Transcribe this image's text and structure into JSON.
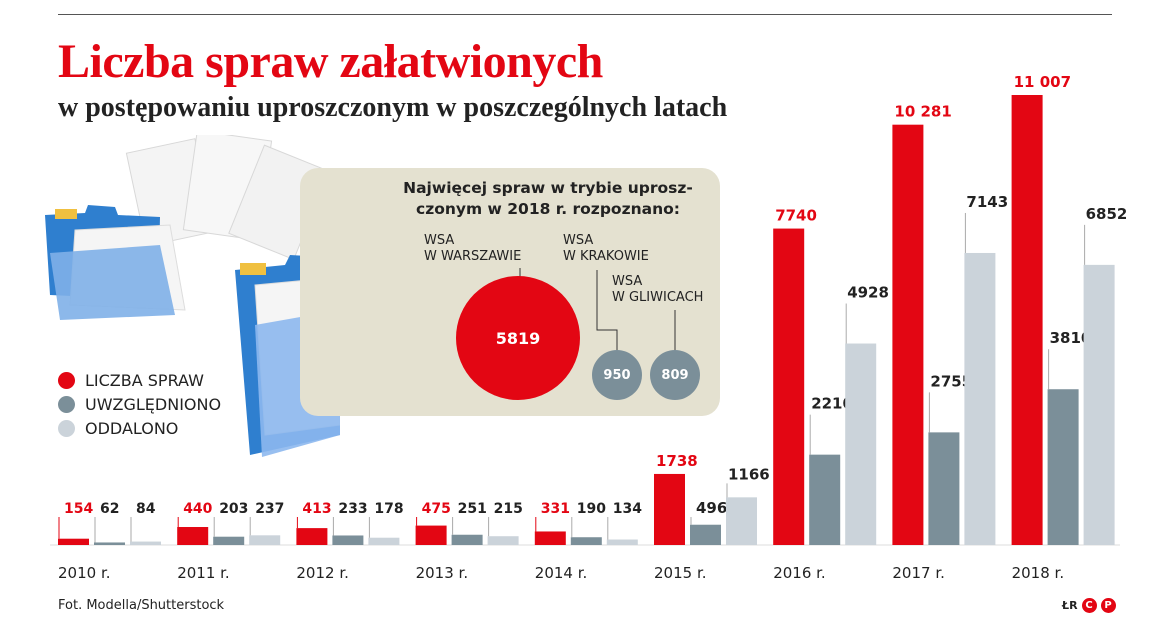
{
  "title": "Liczba spraw załatwionych",
  "subtitle": "w postępowaniu uproszczonym w poszczególnych latach",
  "callout": {
    "text": "Najwięcej spraw w trybie uprosz-czonym w 2018 r. rozpoznano:",
    "items": [
      {
        "label_line1": "WSA",
        "label_line2": "W WARSZAWIE",
        "value": "5819"
      },
      {
        "label_line1": "WSA",
        "label_line2": "W KRAKOWIE",
        "value": "950"
      },
      {
        "label_line1": "WSA",
        "label_line2": "W GLIWICACH",
        "value": "809"
      }
    ]
  },
  "legend": [
    {
      "label": "LICZBA SPRAW",
      "color": "#e30613"
    },
    {
      "label": "UWZGLĘDNIONO",
      "color": "#7b8f99"
    },
    {
      "label": "ODDALONO",
      "color": "#cbd3da"
    }
  ],
  "footer": {
    "source": "Fot. Modella/Shutterstock",
    "logo_text": "ŁR"
  },
  "colors": {
    "red": "#e30613",
    "dark": "#7b8f99",
    "light": "#cbd3da",
    "callout_bg": "#e4e1d0"
  },
  "chart_data": {
    "type": "bar",
    "categories": [
      "2010 r.",
      "2011 r.",
      "2012 r.",
      "2013 r.",
      "2014 r.",
      "2015 r.",
      "2016 r.",
      "2017 r.",
      "2018 r."
    ],
    "series": [
      {
        "name": "LICZBA SPRAW",
        "values": [
          154,
          440,
          413,
          475,
          331,
          1738,
          7740,
          10281,
          11007
        ],
        "labels": [
          "154",
          "440",
          "413",
          "475",
          "331",
          "1738",
          "7740",
          "10 281",
          "11 007"
        ]
      },
      {
        "name": "UWZGLĘDNIONO",
        "values": [
          62,
          203,
          233,
          251,
          190,
          496,
          2210,
          2755,
          3810
        ],
        "labels": [
          "62",
          "203",
          "233",
          "251",
          "190",
          "496",
          "2210",
          "2755",
          "3810"
        ]
      },
      {
        "name": "ODDALONO",
        "values": [
          84,
          237,
          178,
          215,
          134,
          1166,
          4928,
          7143,
          6852
        ],
        "labels": [
          "84",
          "237",
          "178",
          "215",
          "134",
          "1166",
          "4928",
          "7143",
          "6852"
        ]
      }
    ],
    "title": "Liczba spraw załatwionych",
    "subtitle": "w postępowaniu uproszczonym w poszczególnych latach"
  }
}
